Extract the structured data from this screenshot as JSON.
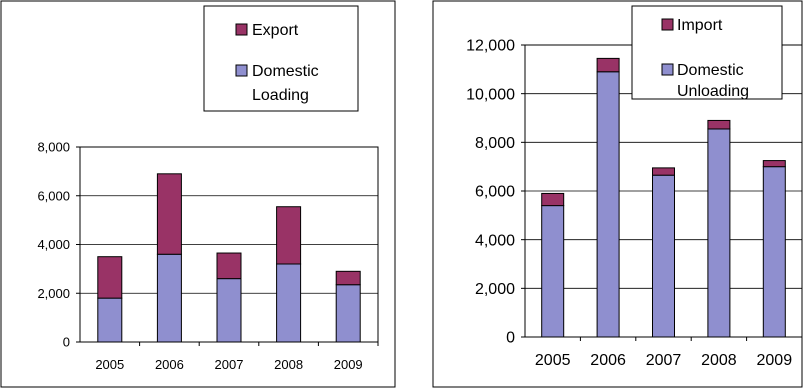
{
  "chart_data": [
    {
      "type": "bar",
      "stacked": true,
      "categories": [
        "2005",
        "2006",
        "2007",
        "2008",
        "2009"
      ],
      "series": [
        {
          "name": "Domestic Loading",
          "values": [
            1800,
            3600,
            2600,
            3200,
            2350
          ],
          "color": "#8f8fcf"
        },
        {
          "name": "Export",
          "values": [
            1700,
            3300,
            1050,
            2350,
            550
          ],
          "color": "#993366"
        }
      ],
      "legend": {
        "position": "top-right",
        "order": [
          "Export",
          "Domestic Loading"
        ]
      },
      "y_ticks": [
        "0",
        "2,000",
        "4,000",
        "6,000",
        "8,000"
      ],
      "ylim": [
        0,
        8000
      ],
      "grid": true
    },
    {
      "type": "bar",
      "stacked": true,
      "categories": [
        "2005",
        "2006",
        "2007",
        "2008",
        "2009"
      ],
      "series": [
        {
          "name": "Domestic Unloading",
          "values": [
            5400,
            10900,
            6650,
            8550,
            7000
          ],
          "color": "#8f8fcf"
        },
        {
          "name": "Import",
          "values": [
            500,
            550,
            300,
            350,
            250
          ],
          "color": "#993366"
        }
      ],
      "legend": {
        "position": "top-right",
        "order": [
          "Import",
          "Domestic Unloading"
        ]
      },
      "y_ticks": [
        "0",
        "2,000",
        "4,000",
        "6,000",
        "8,000",
        "10,000",
        "12,000"
      ],
      "ylim": [
        0,
        12000
      ],
      "grid": true
    }
  ],
  "legends": [
    {
      "items": [
        {
          "line1": "Export",
          "line2": ""
        },
        {
          "line1": "Domestic",
          "line2": "Loading"
        }
      ]
    },
    {
      "items": [
        {
          "line1": "Import",
          "line2": ""
        },
        {
          "line1": "Domestic",
          "line2": "Unloading"
        }
      ]
    }
  ]
}
